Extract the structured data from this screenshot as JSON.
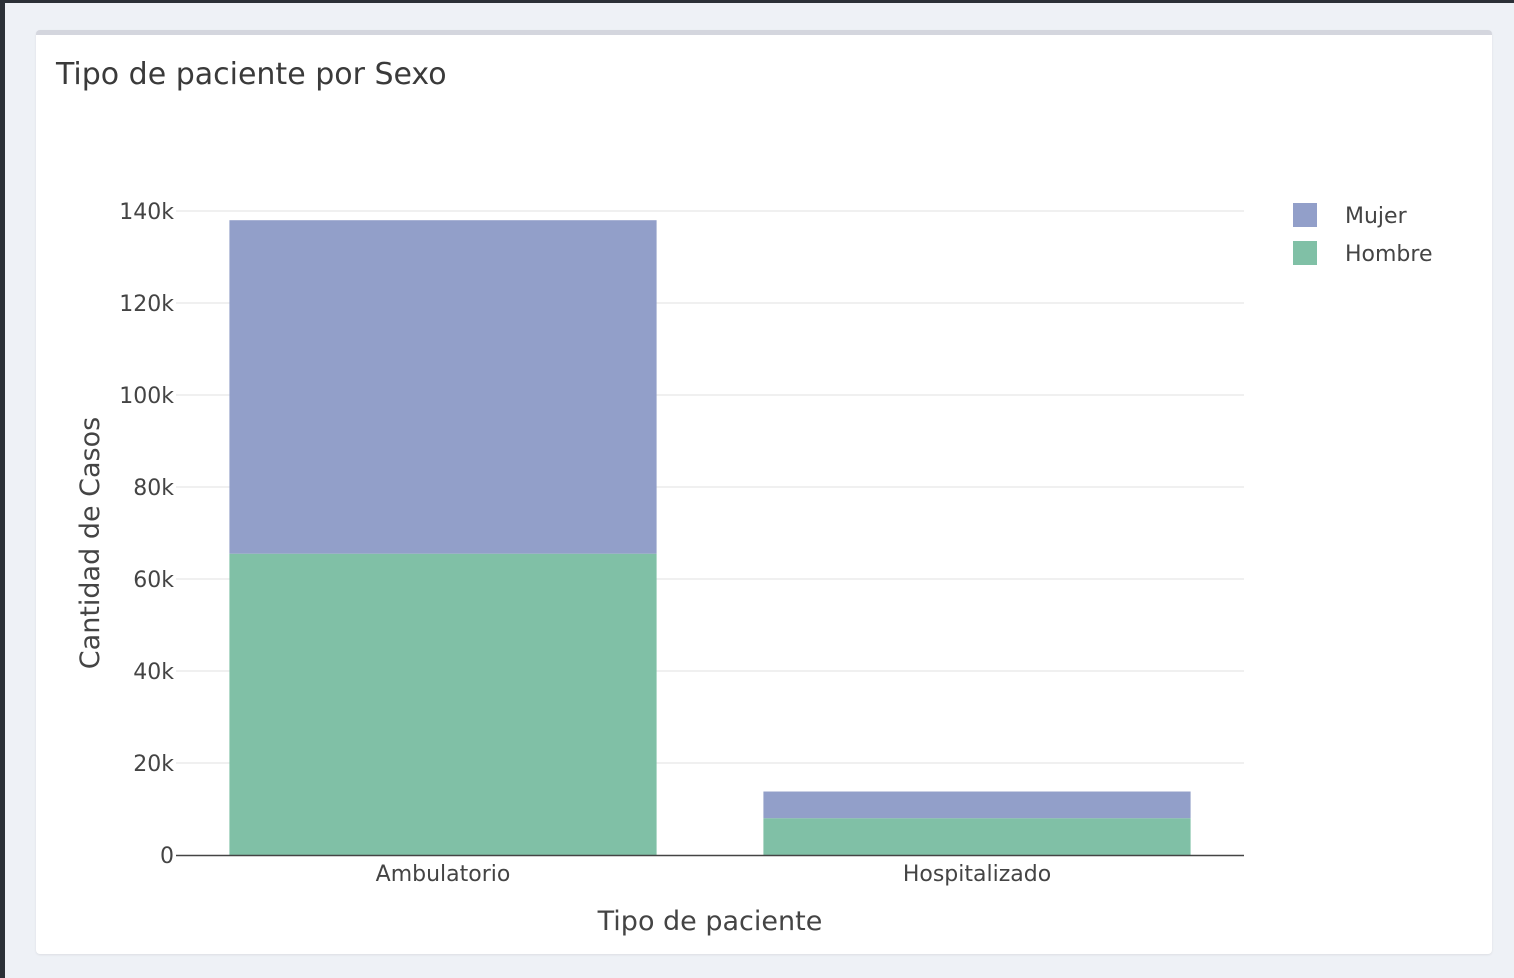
{
  "card": {
    "title": "Tipo de paciente por Sexo"
  },
  "chart_data": {
    "type": "bar",
    "stacked": true,
    "categories": [
      "Ambulatorio",
      "Hospitalizado"
    ],
    "series": [
      {
        "name": "Hombre",
        "values": [
          65500,
          8000
        ],
        "color": "#80c0a6"
      },
      {
        "name": "Mujer",
        "values": [
          72500,
          5800
        ],
        "color": "#929fc9"
      }
    ],
    "xlabel": "Tipo de paciente",
    "ylabel": "Cantidad de Casos",
    "ylim": [
      0,
      140000
    ],
    "yticks": [
      0,
      20000,
      40000,
      60000,
      80000,
      100000,
      120000,
      140000
    ],
    "ytick_labels": [
      "0",
      "20k",
      "40k",
      "60k",
      "80k",
      "100k",
      "120k",
      "140k"
    ],
    "legend": {
      "placement": "top-right",
      "items": [
        {
          "name": "Mujer",
          "color": "#929fc9"
        },
        {
          "name": "Hombre",
          "color": "#80c0a6"
        }
      ]
    },
    "grid": true
  }
}
